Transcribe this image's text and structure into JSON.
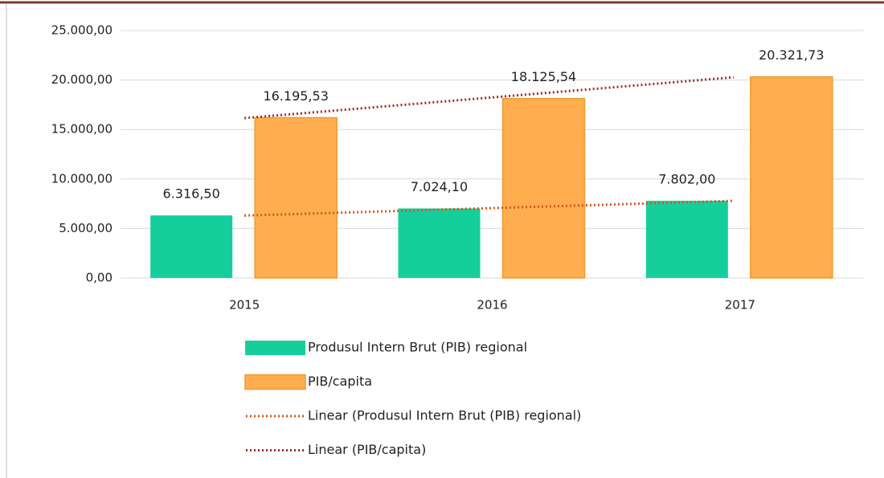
{
  "chart_data": {
    "type": "bar",
    "categories": [
      "2015",
      "2016",
      "2017"
    ],
    "series": [
      {
        "name": "Produsul Intern Brut (PIB) regional",
        "color": "#14cf9c",
        "values": [
          6316.5,
          7024.1,
          7802.0
        ],
        "value_labels": [
          "6.316,50",
          "7.024,10",
          "7.802,00"
        ]
      },
      {
        "name": "PIB/capita",
        "color": "#ffad4f",
        "border": "#f09a30",
        "values": [
          16195.53,
          18125.54,
          20321.73
        ],
        "value_labels": [
          "16.195,53",
          "18.125,54",
          "20.321,73"
        ]
      }
    ],
    "trendlines": [
      {
        "name": "Linear (Produsul Intern Brut (PIB) regional)",
        "series": 0,
        "color": "#d4581f"
      },
      {
        "name": "Linear (PIB/capita)",
        "series": 1,
        "color": "#a12b2b"
      }
    ],
    "ylim": [
      0,
      25000
    ],
    "yticks": [
      {
        "value": 0,
        "label": "0,00"
      },
      {
        "value": 5000,
        "label": "5.000,00"
      },
      {
        "value": 10000,
        "label": "10.000,00"
      },
      {
        "value": 15000,
        "label": "15.000,00"
      },
      {
        "value": 20000,
        "label": "20.000,00"
      },
      {
        "value": 25000,
        "label": "25.000,00"
      }
    ],
    "grid": true,
    "legend": "bottom"
  }
}
